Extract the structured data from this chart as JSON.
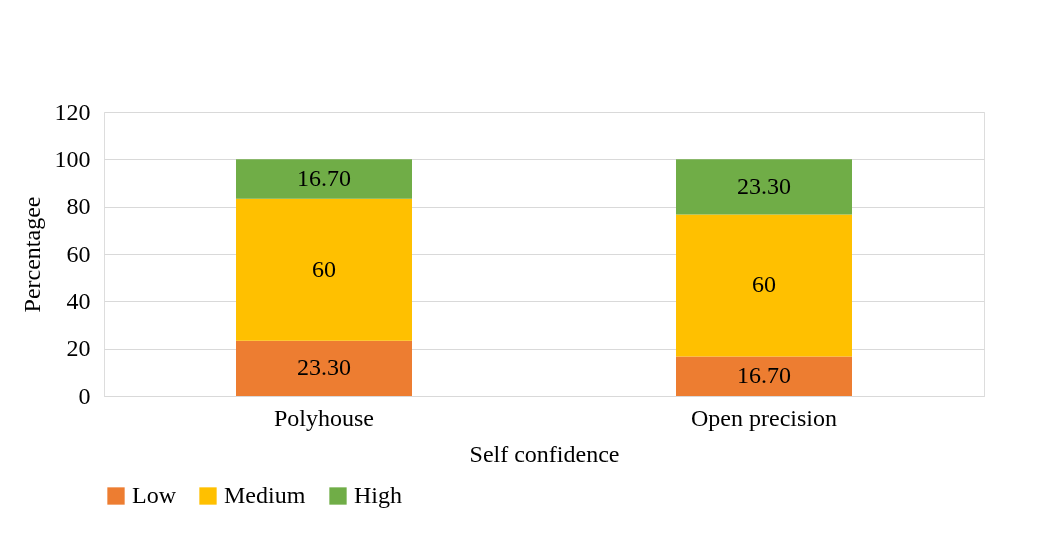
{
  "chart_data": {
    "type": "bar",
    "stacked": true,
    "xlabel": "Self confidence",
    "ylabel": "Percentagee",
    "categories": [
      "Polyhouse",
      "Open precision"
    ],
    "series": [
      {
        "name": "Low",
        "color": "#ed7d31",
        "values": [
          23.3,
          16.7
        ],
        "value_labels": [
          "23.30",
          "16.70"
        ]
      },
      {
        "name": "Medium",
        "color": "#ffc000",
        "values": [
          60,
          60
        ],
        "value_labels": [
          "60",
          "60"
        ]
      },
      {
        "name": "High",
        "color": "#70ad47",
        "values": [
          16.7,
          23.3
        ],
        "value_labels": [
          "16.70",
          "23.30"
        ]
      }
    ],
    "ylim": [
      0,
      120
    ],
    "yticks": [
      0,
      20,
      40,
      60,
      80,
      100,
      120
    ],
    "grid": "y",
    "legend": "bottom"
  }
}
